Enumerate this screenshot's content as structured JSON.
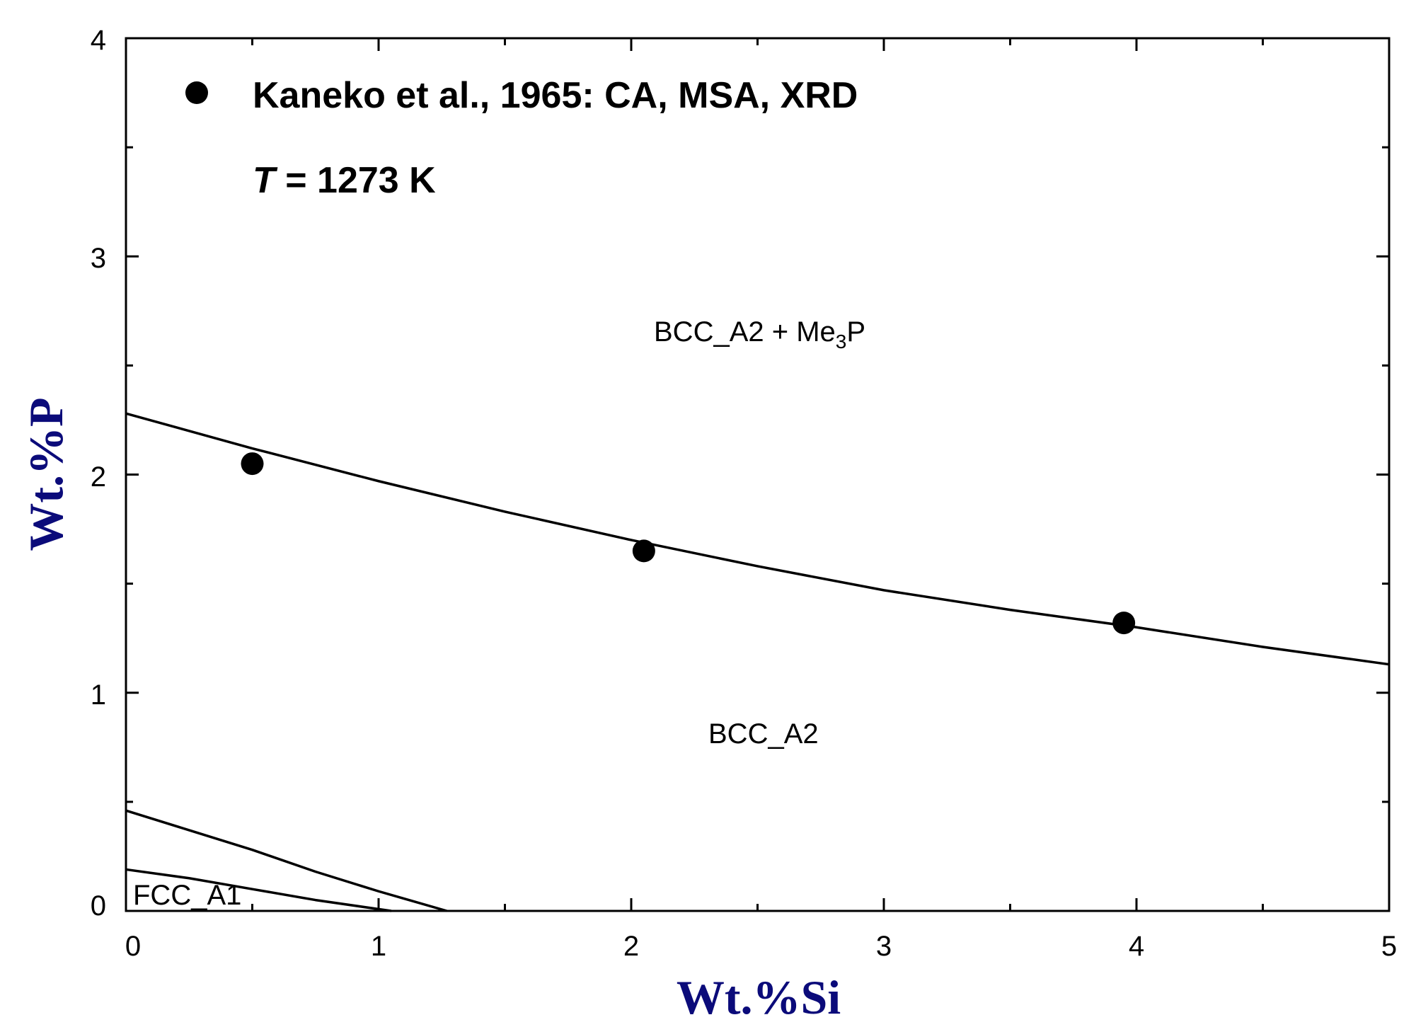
{
  "chart_data": {
    "type": "scatter",
    "title": "",
    "xlabel": "Wt.%Si",
    "ylabel": "Wt.%P",
    "xlim": [
      0,
      5
    ],
    "ylim": [
      0,
      4
    ],
    "x_ticks": [
      "0",
      "1",
      "2",
      "3",
      "4",
      "5"
    ],
    "y_ticks": [
      "0",
      "1",
      "2",
      "3",
      "4"
    ],
    "temperature_label": {
      "italic": "T",
      "rest": " = 1273 K"
    },
    "legend": [
      {
        "name": "Kaneko et al., 1965: CA, MSA, XRD",
        "marker": "filled-circle",
        "placement": "top-left"
      }
    ],
    "series": [
      {
        "name": "Kaneko et al., 1965: CA, MSA, XRD",
        "kind": "points",
        "x": [
          0.5,
          2.05,
          3.95
        ],
        "y": [
          2.05,
          1.65,
          1.32
        ]
      },
      {
        "name": "BCC_A2 / BCC_A2 + Me3P boundary",
        "kind": "line",
        "x": [
          0,
          0.5,
          1,
          1.5,
          2,
          2.5,
          3,
          3.5,
          4,
          4.5,
          5
        ],
        "y": [
          2.28,
          2.12,
          1.97,
          1.83,
          1.7,
          1.58,
          1.47,
          1.38,
          1.3,
          1.21,
          1.13
        ]
      },
      {
        "name": "BCC_A2 / two-phase boundary",
        "kind": "line",
        "x": [
          0,
          0.25,
          0.5,
          0.75,
          1.0,
          1.27
        ],
        "y": [
          0.46,
          0.37,
          0.28,
          0.18,
          0.09,
          0.0
        ]
      },
      {
        "name": "FCC_A1 boundary",
        "kind": "line",
        "x": [
          0,
          0.25,
          0.5,
          0.75,
          1.05
        ],
        "y": [
          0.19,
          0.15,
          0.1,
          0.05,
          0.0
        ]
      }
    ],
    "region_labels": {
      "upper": {
        "main": "BCC_A2 + Me",
        "sub": "3",
        "tail": "P"
      },
      "middle": "BCC_A2",
      "lower": "FCC_A1"
    },
    "colors": {
      "axis_title": "#0b0b7a",
      "lines": "#000000",
      "markers": "#000000"
    }
  }
}
